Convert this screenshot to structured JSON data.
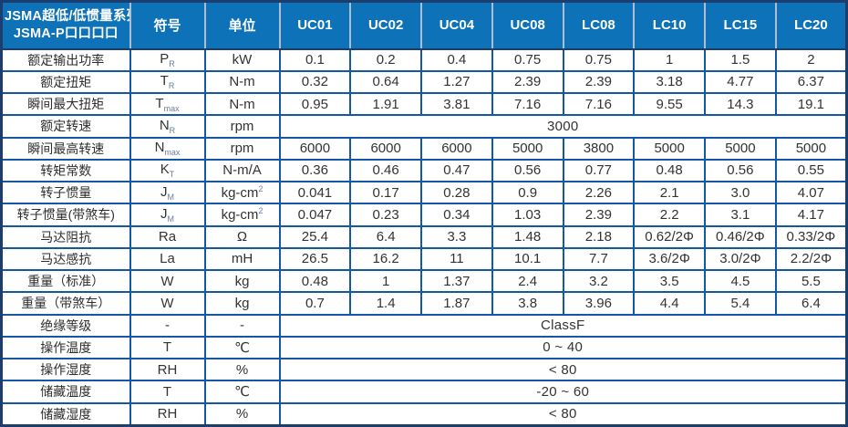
{
  "table": {
    "title_line1": "JSMA超低/低惯量系列",
    "title_line2": "JSMA-P口口口口",
    "symbol_header": "符号",
    "unit_header": "单位",
    "models": [
      "UC01",
      "UC02",
      "UC04",
      "UC08",
      "LC08",
      "LC10",
      "LC15",
      "LC20"
    ],
    "rows": [
      {
        "name": "额定输出功率",
        "symbol": "P",
        "symbol_sub": "R",
        "unit": "kW",
        "values": [
          "0.1",
          "0.2",
          "0.4",
          "0.75",
          "0.75",
          "1",
          "1.5",
          "2"
        ]
      },
      {
        "name": "额定扭矩",
        "symbol": "T",
        "symbol_sub": "R",
        "unit": "N-m",
        "values": [
          "0.32",
          "0.64",
          "1.27",
          "2.39",
          "2.39",
          "3.18",
          "4.77",
          "6.37"
        ]
      },
      {
        "name": "瞬间最大扭矩",
        "symbol": "T",
        "symbol_sub": "max",
        "unit": "N-m",
        "values": [
          "0.95",
          "1.91",
          "3.81",
          "7.16",
          "7.16",
          "9.55",
          "14.3",
          "19.1"
        ]
      },
      {
        "name": "额定转速",
        "symbol": "N",
        "symbol_sub": "R",
        "unit": "rpm",
        "merged": "3000"
      },
      {
        "name": "瞬间最高转速",
        "symbol": "N",
        "symbol_sub": "max",
        "unit": "rpm",
        "values": [
          "6000",
          "6000",
          "6000",
          "5000",
          "3800",
          "5000",
          "5000",
          "5000"
        ]
      },
      {
        "name": "转矩常数",
        "symbol": "K",
        "symbol_sub": "T",
        "unit": "N-m/A",
        "values": [
          "0.36",
          "0.46",
          "0.47",
          "0.56",
          "0.77",
          "0.48",
          "0.56",
          "0.55"
        ]
      },
      {
        "name": "转子惯量",
        "symbol": "J",
        "symbol_sub": "M",
        "unit": "kg-cm",
        "unit_sup": "2",
        "values": [
          "0.041",
          "0.17",
          "0.28",
          "0.9",
          "2.26",
          "2.1",
          "3.0",
          "4.07"
        ]
      },
      {
        "name": "转子惯量(带煞车)",
        "symbol": "J",
        "symbol_sub": "M",
        "unit": "kg-cm",
        "unit_sup": "2",
        "values": [
          "0.047",
          "0.23",
          "0.34",
          "1.03",
          "2.39",
          "2.2",
          "3.1",
          "4.17"
        ]
      },
      {
        "name": "马达阻抗",
        "symbol": "Ra",
        "unit": "Ω",
        "values": [
          "25.4",
          "6.4",
          "3.3",
          "1.48",
          "2.18",
          "0.62/2Φ",
          "0.46/2Φ",
          "0.33/2Φ"
        ]
      },
      {
        "name": "马达感抗",
        "symbol": "La",
        "unit": "mH",
        "values": [
          "26.5",
          "16.2",
          "11",
          "10.1",
          "7.7",
          "3.6/2Φ",
          "3.0/2Φ",
          "2.2/2Φ"
        ]
      },
      {
        "name": "重量（标准）",
        "symbol": "W",
        "unit": "kg",
        "values": [
          "0.48",
          "1",
          "1.37",
          "2.4",
          "3.2",
          "3.5",
          "4.5",
          "5.5"
        ]
      },
      {
        "name": "重量（带煞车）",
        "symbol": "W",
        "unit": "kg",
        "values": [
          "0.7",
          "1.4",
          "1.87",
          "3.8",
          "3.96",
          "4.4",
          "5.4",
          "6.4"
        ]
      },
      {
        "name": "绝缘等级",
        "symbol": "-",
        "unit": "-",
        "merged": "ClassF"
      },
      {
        "name": "操作温度",
        "symbol": "T",
        "unit": "℃",
        "merged": "0 ~ 40"
      },
      {
        "name": "操作湿度",
        "symbol": "RH",
        "unit": "%",
        "merged": "< 80"
      },
      {
        "name": "储藏温度",
        "symbol": "T",
        "unit": "℃",
        "merged": "-20 ~ 60"
      },
      {
        "name": "储藏湿度",
        "symbol": "RH",
        "unit": "%",
        "merged": "< 80"
      }
    ],
    "colors": {
      "header_bg": "#0e72b8",
      "grid_border": "#1159a4",
      "outer_border": "#1c3e6e",
      "header_text": "#ffffff"
    }
  }
}
